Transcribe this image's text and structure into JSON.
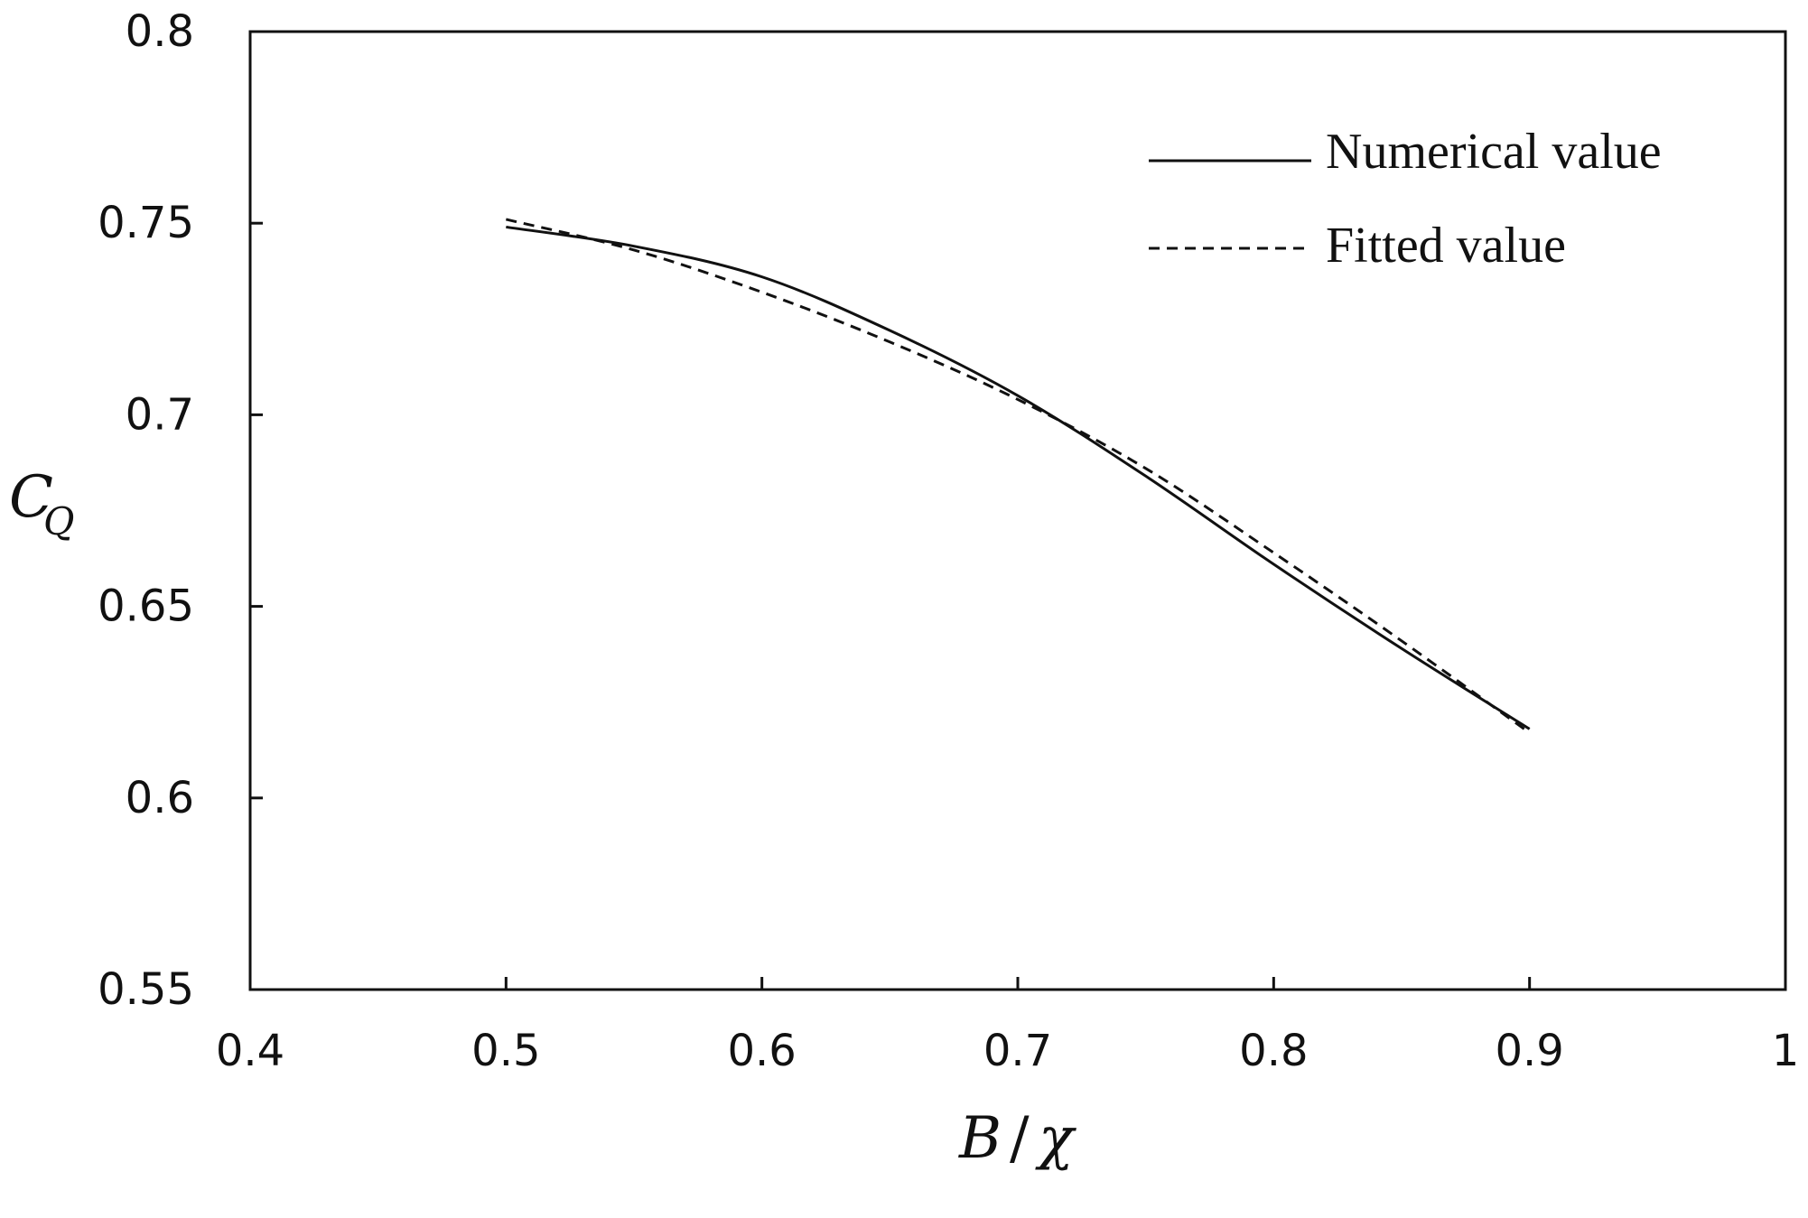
{
  "chart_data": {
    "type": "line",
    "title": "",
    "xlabel": {
      "main": "B",
      "sep": "/",
      "var": "χ"
    },
    "ylabel": {
      "main": "C",
      "sub": "Q"
    },
    "xlim": [
      0.4,
      1.0
    ],
    "ylim": [
      0.55,
      0.8
    ],
    "x_ticks": [
      "0.4",
      "0.5",
      "0.6",
      "0.7",
      "0.8",
      "0.9",
      "1"
    ],
    "y_ticks": [
      "0.55",
      "0.6",
      "0.65",
      "0.7",
      "0.75",
      "0.8"
    ],
    "grid": false,
    "legend_position": "top-right",
    "series": [
      {
        "name": "Numerical value",
        "style": "solid",
        "color": "#111111",
        "x": [
          0.5,
          0.55,
          0.6,
          0.65,
          0.7,
          0.75,
          0.8,
          0.85,
          0.9
        ],
        "y": [
          0.749,
          0.744,
          0.736,
          0.722,
          0.705,
          0.684,
          0.661,
          0.639,
          0.618
        ]
      },
      {
        "name": "Fitted value",
        "style": "dashed",
        "color": "#111111",
        "x": [
          0.5,
          0.55,
          0.6,
          0.65,
          0.7,
          0.75,
          0.8,
          0.85,
          0.9
        ],
        "y": [
          0.751,
          0.743,
          0.732,
          0.719,
          0.704,
          0.686,
          0.664,
          0.641,
          0.617
        ]
      }
    ]
  }
}
